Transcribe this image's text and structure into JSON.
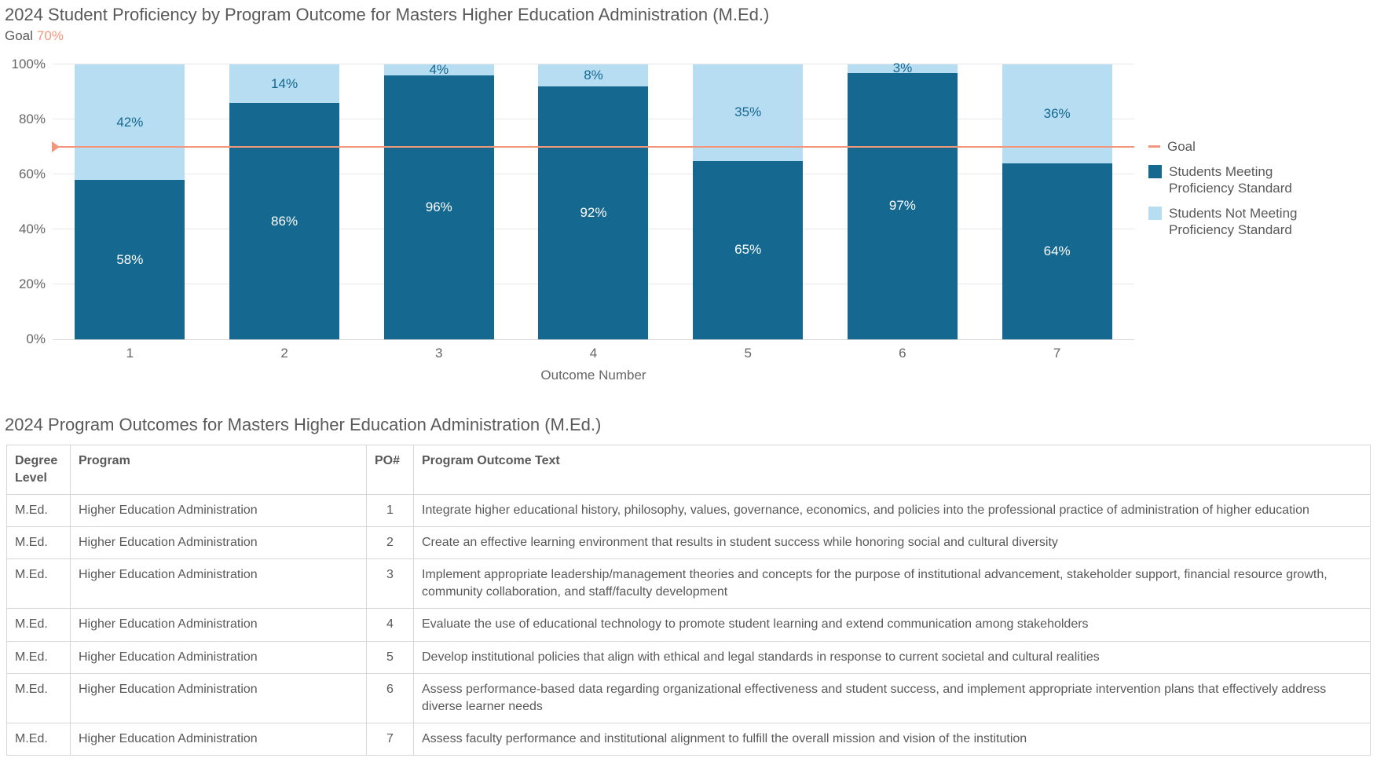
{
  "chart_data": {
    "type": "bar",
    "stacked": true,
    "title": "2024 Student Proficiency by Program Outcome for Masters Higher Education Administration (M.Ed.)",
    "xlabel": "Outcome Number",
    "ylabel": "",
    "ylim": [
      0,
      100
    ],
    "ytick_labels": [
      "0%",
      "20%",
      "40%",
      "60%",
      "80%",
      "100%"
    ],
    "grid": "horizontal",
    "legend_position": "right",
    "categories": [
      "1",
      "2",
      "3",
      "4",
      "5",
      "6",
      "7"
    ],
    "series": [
      {
        "name": "Students Meeting Proficiency Standard",
        "color": "#15688F",
        "label_color": "#FFFFFF",
        "values": [
          58,
          86,
          96,
          92,
          65,
          97,
          64
        ]
      },
      {
        "name": "Students Not Meeting Proficiency Standard",
        "color": "#B6DDF2",
        "label_color": "#15688F",
        "values": [
          42,
          14,
          4,
          8,
          35,
          3,
          36
        ]
      }
    ],
    "goal": {
      "label": "Goal",
      "value": 70,
      "display": "70%",
      "color": "#F2977B"
    }
  },
  "outcomes_section": {
    "title": "2024 Program Outcomes for Masters Higher Education Administration (M.Ed.)",
    "table": {
      "columns": [
        "Degree Level",
        "Program",
        "PO#",
        "Program Outcome Text"
      ],
      "rows": [
        {
          "degree_level": "M.Ed.",
          "program": "Higher Education Administration",
          "po_number": "1",
          "outcome_text": "Integrate higher educational history, philosophy, values, governance, economics, and policies into the professional practice of administration of higher education"
        },
        {
          "degree_level": "M.Ed.",
          "program": "Higher Education Administration",
          "po_number": "2",
          "outcome_text": "Create an effective learning environment that results in student success while honoring social and cultural diversity"
        },
        {
          "degree_level": "M.Ed.",
          "program": "Higher Education Administration",
          "po_number": "3",
          "outcome_text": "Implement appropriate leadership/management theories and concepts for the purpose of institutional advancement, stakeholder support, financial resource growth, community collaboration, and staff/faculty development"
        },
        {
          "degree_level": "M.Ed.",
          "program": "Higher Education Administration",
          "po_number": "4",
          "outcome_text": "Evaluate the use of educational technology to promote student learning and extend communication among stakeholders"
        },
        {
          "degree_level": "M.Ed.",
          "program": "Higher Education Administration",
          "po_number": "5",
          "outcome_text": "Develop institutional policies that align with ethical and legal standards in response to current societal and cultural realities"
        },
        {
          "degree_level": "M.Ed.",
          "program": "Higher Education Administration",
          "po_number": "6",
          "outcome_text": "Assess performance-based data regarding organizational effectiveness and student success, and implement appropriate intervention plans that effectively address diverse learner needs"
        },
        {
          "degree_level": "M.Ed.",
          "program": "Higher Education Administration",
          "po_number": "7",
          "outcome_text": "Assess faculty performance and institutional alignment to fulfill the overall mission and vision of the institution"
        }
      ]
    }
  },
  "colors": {
    "series_dark": "#15688F",
    "series_light": "#B6DDF2",
    "goal_line": "#F2977B",
    "title_text": "#595959",
    "axis_text": "#666666",
    "gridline": "#E8E8E8",
    "table_border": "#D6D6D6"
  }
}
